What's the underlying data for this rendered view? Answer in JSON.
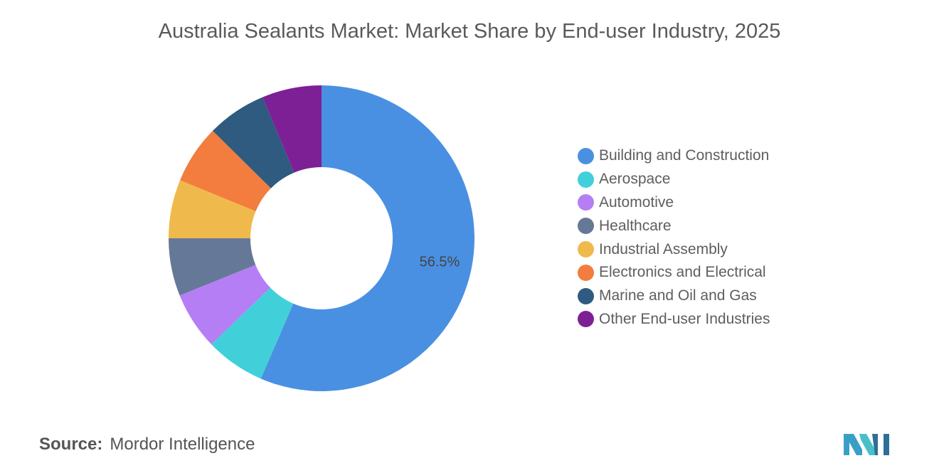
{
  "title": "Australia Sealants Market: Market Share by End-user Industry, 2025",
  "source": {
    "label": "Source:",
    "value": "Mordor Intelligence"
  },
  "logo": {
    "name": "mordor-intelligence-logo",
    "colors": [
      "#3a9fc7",
      "#2d6f99",
      "#49c0c9"
    ]
  },
  "chart_data": {
    "type": "pie",
    "style": "donut",
    "title": "Australia Sealants Market: Market Share by End-user Industry, 2025",
    "categories": [
      "Building and Construction",
      "Aerospace",
      "Automotive",
      "Healthcare",
      "Industrial Assembly",
      "Electronics and Electrical",
      "Marine and Oil and Gas",
      "Other End-user Industries"
    ],
    "values": [
      56.5,
      6.3,
      6.1,
      6.1,
      6.2,
      6.2,
      6.3,
      6.3
    ],
    "colors": [
      "#4a90e2",
      "#41d0d9",
      "#b57ef5",
      "#667897",
      "#f0b94c",
      "#f27d3e",
      "#2e5b7f",
      "#7d2096"
    ],
    "data_labels": [
      "56.5%",
      "",
      "",
      "",
      "",
      "",
      "",
      ""
    ],
    "start_angle_deg": 0,
    "direction": "clockwise",
    "legend_position": "right"
  }
}
